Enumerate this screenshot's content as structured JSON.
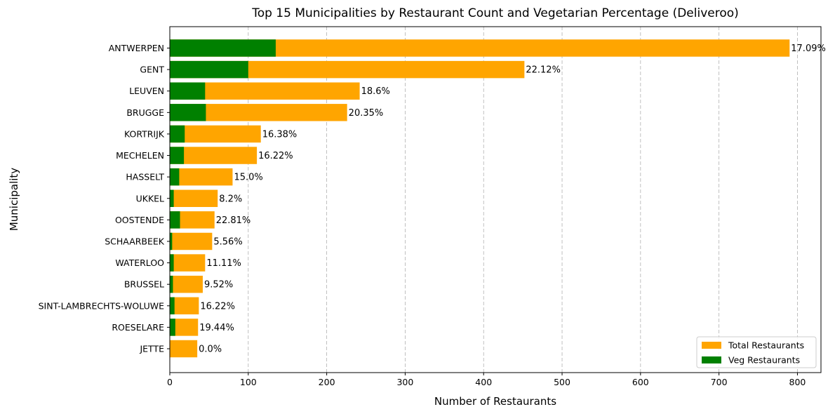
{
  "chart_data": {
    "type": "bar",
    "orientation": "horizontal",
    "title": "Top 15 Municipalities by Restaurant Count and Vegetarian Percentage (Deliveroo)",
    "xlabel": "Number of Restaurants",
    "ylabel": "Municipality",
    "xlim": [
      0,
      830
    ],
    "xticks": [
      0,
      100,
      200,
      300,
      400,
      500,
      600,
      700,
      800
    ],
    "grid": "x-dashed",
    "legend_position": "bottom-right",
    "categories": [
      "ANTWERPEN",
      "GENT",
      "LEUVEN",
      "BRUGGE",
      "KORTRIJK",
      "MECHELEN",
      "HASSELT",
      "UKKEL",
      "OOSTENDE",
      "SCHAARBEEK",
      "WATERLOO",
      "BRUSSEL",
      "SINT-LAMBRECHTS-WOLUWE",
      "ROESELARE",
      "JETTE"
    ],
    "series": [
      {
        "name": "Total Restaurants",
        "color": "#FFA500",
        "values": [
          790,
          452,
          242,
          226,
          116,
          111,
          80,
          61,
          57,
          54,
          45,
          42,
          37,
          36,
          35
        ]
      },
      {
        "name": "Veg Restaurants",
        "color": "#008000",
        "values": [
          135,
          100,
          45,
          46,
          19,
          18,
          12,
          5,
          13,
          3,
          5,
          4,
          6,
          7,
          0
        ]
      }
    ],
    "data_labels": [
      "17.09%",
      "22.12%",
      "18.6%",
      "20.35%",
      "16.38%",
      "16.22%",
      "15.0%",
      "8.2%",
      "22.81%",
      "5.56%",
      "11.11%",
      "9.52%",
      "16.22%",
      "19.44%",
      "0.0%"
    ]
  }
}
